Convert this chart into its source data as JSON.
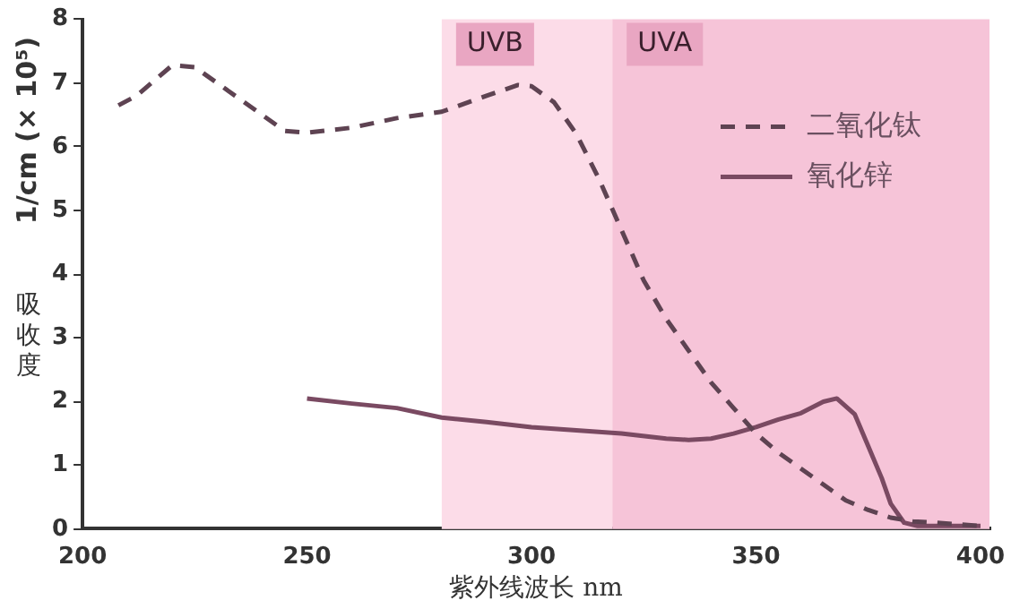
{
  "chart_data": {
    "type": "line",
    "xlabel": "紫外线波长 nm",
    "ylabel": "1/cm (× 10⁵)",
    "annotations": [
      "吸收度"
    ],
    "xlim": [
      200,
      402
    ],
    "xticks": [
      200,
      250,
      300,
      350,
      400
    ],
    "ylim": [
      0,
      8
    ],
    "yticks": [
      0,
      1,
      2,
      3,
      4,
      5,
      6,
      7,
      8
    ],
    "grid": false,
    "legend": "top right",
    "marker": "none",
    "bands": [
      {
        "axis": "x",
        "from": 280,
        "to": 318,
        "label": "UVB",
        "color": "#fcdce8"
      },
      {
        "axis": "x",
        "from": 318,
        "to": 402,
        "label": "UVA",
        "color": "#f6c4d8"
      }
    ],
    "series": [
      {
        "name": "二氧化钛",
        "color": "#5e4352",
        "line_style": "dashed",
        "x": [
          208,
          212,
          220,
          225,
          230,
          240,
          245,
          250,
          260,
          270,
          280,
          290,
          297,
          300,
          305,
          310,
          315,
          320,
          325,
          330,
          335,
          340,
          345,
          350,
          355,
          360,
          365,
          370,
          375,
          380,
          385,
          390,
          400
        ],
        "values": [
          6.65,
          6.8,
          7.28,
          7.25,
          7.0,
          6.5,
          6.25,
          6.22,
          6.3,
          6.45,
          6.55,
          6.8,
          6.97,
          6.95,
          6.7,
          6.2,
          5.5,
          4.7,
          3.9,
          3.3,
          2.8,
          2.3,
          1.9,
          1.5,
          1.2,
          0.95,
          0.7,
          0.45,
          0.3,
          0.18,
          0.12,
          0.1,
          0.05
        ]
      },
      {
        "name": "氧化锌",
        "color": "#7a4a62",
        "line_style": "solid",
        "x": [
          250,
          260,
          270,
          280,
          290,
          300,
          310,
          320,
          330,
          335,
          340,
          345,
          350,
          355,
          360,
          365,
          368,
          372,
          375,
          378,
          380,
          383,
          386,
          400
        ],
        "values": [
          2.05,
          1.97,
          1.9,
          1.75,
          1.68,
          1.6,
          1.55,
          1.5,
          1.42,
          1.4,
          1.42,
          1.5,
          1.6,
          1.72,
          1.82,
          2.0,
          2.05,
          1.8,
          1.3,
          0.8,
          0.4,
          0.1,
          0.05,
          0.05
        ]
      }
    ]
  }
}
